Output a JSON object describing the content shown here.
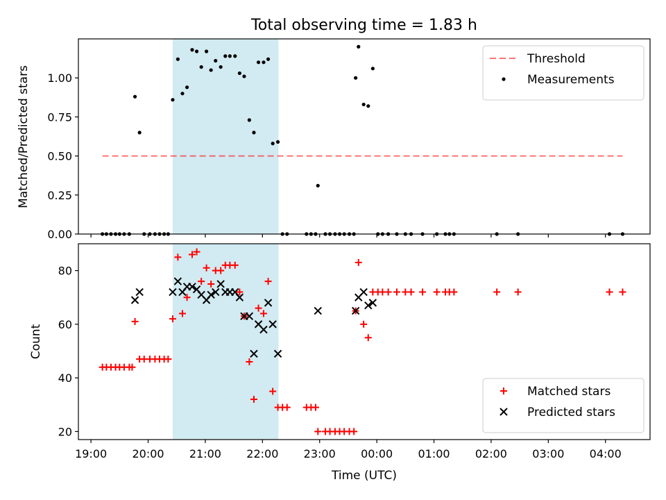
{
  "title": "Total observing time = 1.83 h",
  "chart_data": [
    {
      "type": "scatter",
      "ylabel": "Matched/Predicted stars",
      "ylim": [
        0,
        1.25
      ],
      "yticks": [
        "0.00",
        "0.25",
        "0.50",
        "0.75",
        "1.00"
      ],
      "xlim_hours": [
        18.78,
        28.78
      ],
      "highlight_band_hours": [
        20.43,
        22.28
      ],
      "highlight_color": "#add8e6",
      "legend_position": "top-right",
      "threshold": {
        "name": "Threshold",
        "value": 0.5,
        "x_hours": [
          19.2,
          28.3
        ],
        "color": "#ff0000"
      },
      "series": [
        {
          "name": "Measurements",
          "color": "#000000",
          "points": [
            [
              19.2,
              0
            ],
            [
              19.27,
              0
            ],
            [
              19.35,
              0
            ],
            [
              19.43,
              0
            ],
            [
              19.5,
              0
            ],
            [
              19.58,
              0
            ],
            [
              19.67,
              0
            ],
            [
              19.77,
              0.88
            ],
            [
              19.85,
              0.65
            ],
            [
              19.93,
              0
            ],
            [
              20.03,
              0
            ],
            [
              20.12,
              0
            ],
            [
              20.2,
              0
            ],
            [
              20.28,
              0
            ],
            [
              20.35,
              0
            ],
            [
              20.43,
              0.86
            ],
            [
              20.52,
              1.12
            ],
            [
              20.6,
              0.9
            ],
            [
              20.68,
              0.94
            ],
            [
              20.77,
              1.18
            ],
            [
              20.85,
              1.17
            ],
            [
              20.93,
              1.07
            ],
            [
              21.02,
              1.17
            ],
            [
              21.1,
              1.05
            ],
            [
              21.18,
              1.11
            ],
            [
              21.27,
              1.07
            ],
            [
              21.35,
              1.14
            ],
            [
              21.43,
              1.14
            ],
            [
              21.52,
              1.14
            ],
            [
              21.6,
              1.03
            ],
            [
              21.68,
              1.01
            ],
            [
              21.77,
              0.73
            ],
            [
              21.85,
              0.65
            ],
            [
              21.93,
              1.1
            ],
            [
              22.02,
              1.1
            ],
            [
              22.1,
              1.12
            ],
            [
              22.18,
              0.58
            ],
            [
              22.27,
              0.59
            ],
            [
              22.35,
              0
            ],
            [
              22.43,
              0
            ],
            [
              22.77,
              0
            ],
            [
              22.85,
              0
            ],
            [
              22.93,
              0
            ],
            [
              22.97,
              0.31
            ],
            [
              23.1,
              0
            ],
            [
              23.18,
              0
            ],
            [
              23.27,
              0
            ],
            [
              23.35,
              0
            ],
            [
              23.43,
              0
            ],
            [
              23.52,
              0
            ],
            [
              23.6,
              0
            ],
            [
              23.63,
              1.0
            ],
            [
              23.68,
              1.2
            ],
            [
              23.77,
              0.83
            ],
            [
              23.85,
              0.82
            ],
            [
              23.93,
              1.06
            ],
            [
              24.02,
              0
            ],
            [
              24.1,
              0
            ],
            [
              24.2,
              0
            ],
            [
              24.35,
              0
            ],
            [
              24.5,
              0
            ],
            [
              24.6,
              0
            ],
            [
              24.8,
              0
            ],
            [
              25.05,
              0
            ],
            [
              25.2,
              0
            ],
            [
              25.27,
              0
            ],
            [
              25.35,
              0
            ],
            [
              26.1,
              0
            ],
            [
              26.47,
              0
            ],
            [
              28.07,
              0
            ],
            [
              28.3,
              0
            ]
          ]
        }
      ]
    },
    {
      "type": "scatter",
      "xlabel": "Time (UTC)",
      "ylabel": "Count",
      "ylim": [
        17,
        90
      ],
      "yticks": [
        "20",
        "40",
        "60",
        "80"
      ],
      "xlim_hours": [
        18.78,
        28.78
      ],
      "xticks": [
        "19:00",
        "20:00",
        "21:00",
        "22:00",
        "23:00",
        "00:00",
        "01:00",
        "02:00",
        "03:00",
        "04:00"
      ],
      "xtick_hours": [
        19,
        20,
        21,
        22,
        23,
        24,
        25,
        26,
        27,
        28
      ],
      "highlight_band_hours": [
        20.43,
        22.28
      ],
      "highlight_color": "#add8e6",
      "legend_position": "bottom-right",
      "series": [
        {
          "name": "Matched stars",
          "marker": "plus",
          "color": "#ff0000",
          "points": [
            [
              19.2,
              44
            ],
            [
              19.27,
              44
            ],
            [
              19.35,
              44
            ],
            [
              19.43,
              44
            ],
            [
              19.5,
              44
            ],
            [
              19.58,
              44
            ],
            [
              19.67,
              44
            ],
            [
              19.72,
              44
            ],
            [
              19.77,
              61
            ],
            [
              19.85,
              47
            ],
            [
              19.93,
              47
            ],
            [
              20.03,
              47
            ],
            [
              20.12,
              47
            ],
            [
              20.2,
              47
            ],
            [
              20.28,
              47
            ],
            [
              20.35,
              47
            ],
            [
              20.43,
              62
            ],
            [
              20.52,
              85
            ],
            [
              20.6,
              64
            ],
            [
              20.68,
              70
            ],
            [
              20.77,
              86
            ],
            [
              20.85,
              87
            ],
            [
              20.93,
              76
            ],
            [
              21.02,
              81
            ],
            [
              21.1,
              75
            ],
            [
              21.18,
              80
            ],
            [
              21.27,
              80
            ],
            [
              21.35,
              82
            ],
            [
              21.43,
              82
            ],
            [
              21.52,
              82
            ],
            [
              21.6,
              72
            ],
            [
              21.68,
              63
            ],
            [
              21.77,
              46
            ],
            [
              21.85,
              32
            ],
            [
              21.93,
              66
            ],
            [
              22.02,
              64
            ],
            [
              22.1,
              76
            ],
            [
              22.18,
              35
            ],
            [
              22.27,
              29
            ],
            [
              22.35,
              29
            ],
            [
              22.43,
              29
            ],
            [
              22.77,
              29
            ],
            [
              22.85,
              29
            ],
            [
              22.93,
              29
            ],
            [
              22.97,
              20
            ],
            [
              23.1,
              20
            ],
            [
              23.18,
              20
            ],
            [
              23.27,
              20
            ],
            [
              23.35,
              20
            ],
            [
              23.43,
              20
            ],
            [
              23.52,
              20
            ],
            [
              23.6,
              20
            ],
            [
              23.63,
              65
            ],
            [
              23.68,
              83
            ],
            [
              23.77,
              60
            ],
            [
              23.85,
              55
            ],
            [
              23.93,
              72
            ],
            [
              24.02,
              72
            ],
            [
              24.1,
              72
            ],
            [
              24.2,
              72
            ],
            [
              24.35,
              72
            ],
            [
              24.5,
              72
            ],
            [
              24.6,
              72
            ],
            [
              24.8,
              72
            ],
            [
              25.05,
              72
            ],
            [
              25.2,
              72
            ],
            [
              25.27,
              72
            ],
            [
              25.35,
              72
            ],
            [
              26.1,
              72
            ],
            [
              26.47,
              72
            ],
            [
              28.07,
              72
            ],
            [
              28.3,
              72
            ]
          ]
        },
        {
          "name": "Predicted stars",
          "marker": "x",
          "color": "#000000",
          "points": [
            [
              19.77,
              69
            ],
            [
              19.85,
              72
            ],
            [
              20.43,
              72
            ],
            [
              20.52,
              76
            ],
            [
              20.6,
              72
            ],
            [
              20.68,
              74
            ],
            [
              20.77,
              74
            ],
            [
              20.85,
              73
            ],
            [
              20.93,
              71
            ],
            [
              21.02,
              69
            ],
            [
              21.1,
              71
            ],
            [
              21.18,
              72
            ],
            [
              21.27,
              75
            ],
            [
              21.35,
              72
            ],
            [
              21.43,
              72
            ],
            [
              21.52,
              72
            ],
            [
              21.6,
              70
            ],
            [
              21.68,
              63
            ],
            [
              21.77,
              63
            ],
            [
              21.85,
              49
            ],
            [
              21.93,
              60
            ],
            [
              22.02,
              58
            ],
            [
              22.1,
              68
            ],
            [
              22.18,
              60
            ],
            [
              22.27,
              49
            ],
            [
              22.97,
              65
            ],
            [
              23.63,
              65
            ],
            [
              23.68,
              70
            ],
            [
              23.77,
              72
            ],
            [
              23.85,
              67
            ],
            [
              23.93,
              68
            ]
          ]
        }
      ]
    }
  ]
}
